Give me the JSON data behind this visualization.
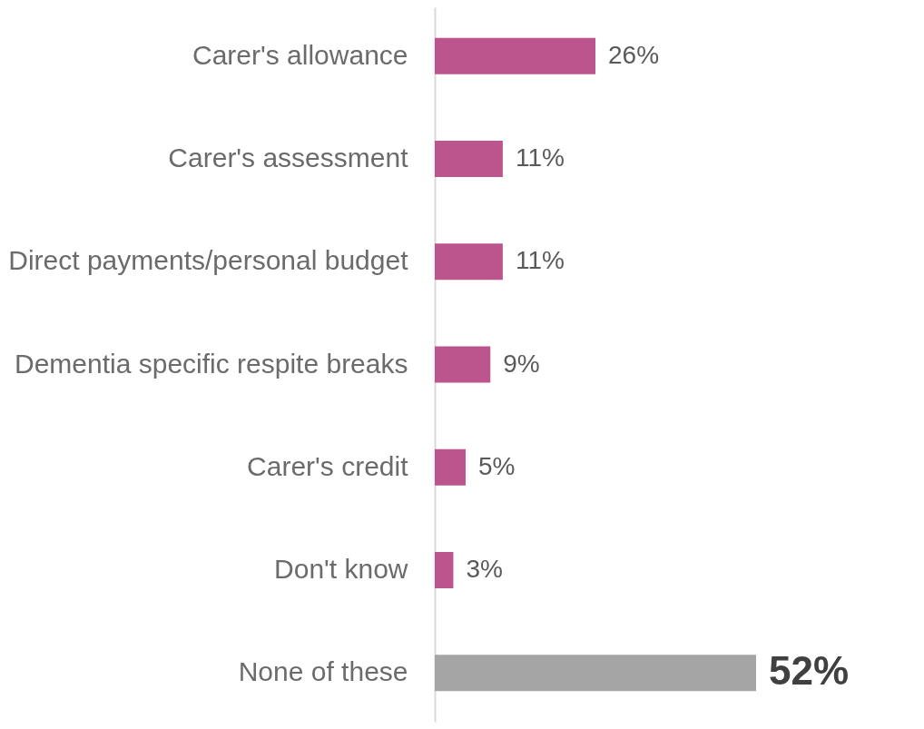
{
  "chart_data": {
    "type": "bar",
    "orientation": "horizontal",
    "categories": [
      "Carer's allowance",
      "Carer's assessment",
      "Direct payments/personal budget",
      "Dementia specific respite breaks",
      "Carer's credit",
      "Don't know",
      "None of these"
    ],
    "values": [
      26,
      11,
      11,
      9,
      5,
      3,
      52
    ],
    "colors": [
      "#bc558d",
      "#bc558d",
      "#bc558d",
      "#bc558d",
      "#bc558d",
      "#bc558d",
      "#a5a5a5"
    ],
    "value_labels": [
      "26%",
      "11%",
      "11%",
      "9%",
      "5%",
      "3%",
      "52%"
    ],
    "grid": false
  }
}
